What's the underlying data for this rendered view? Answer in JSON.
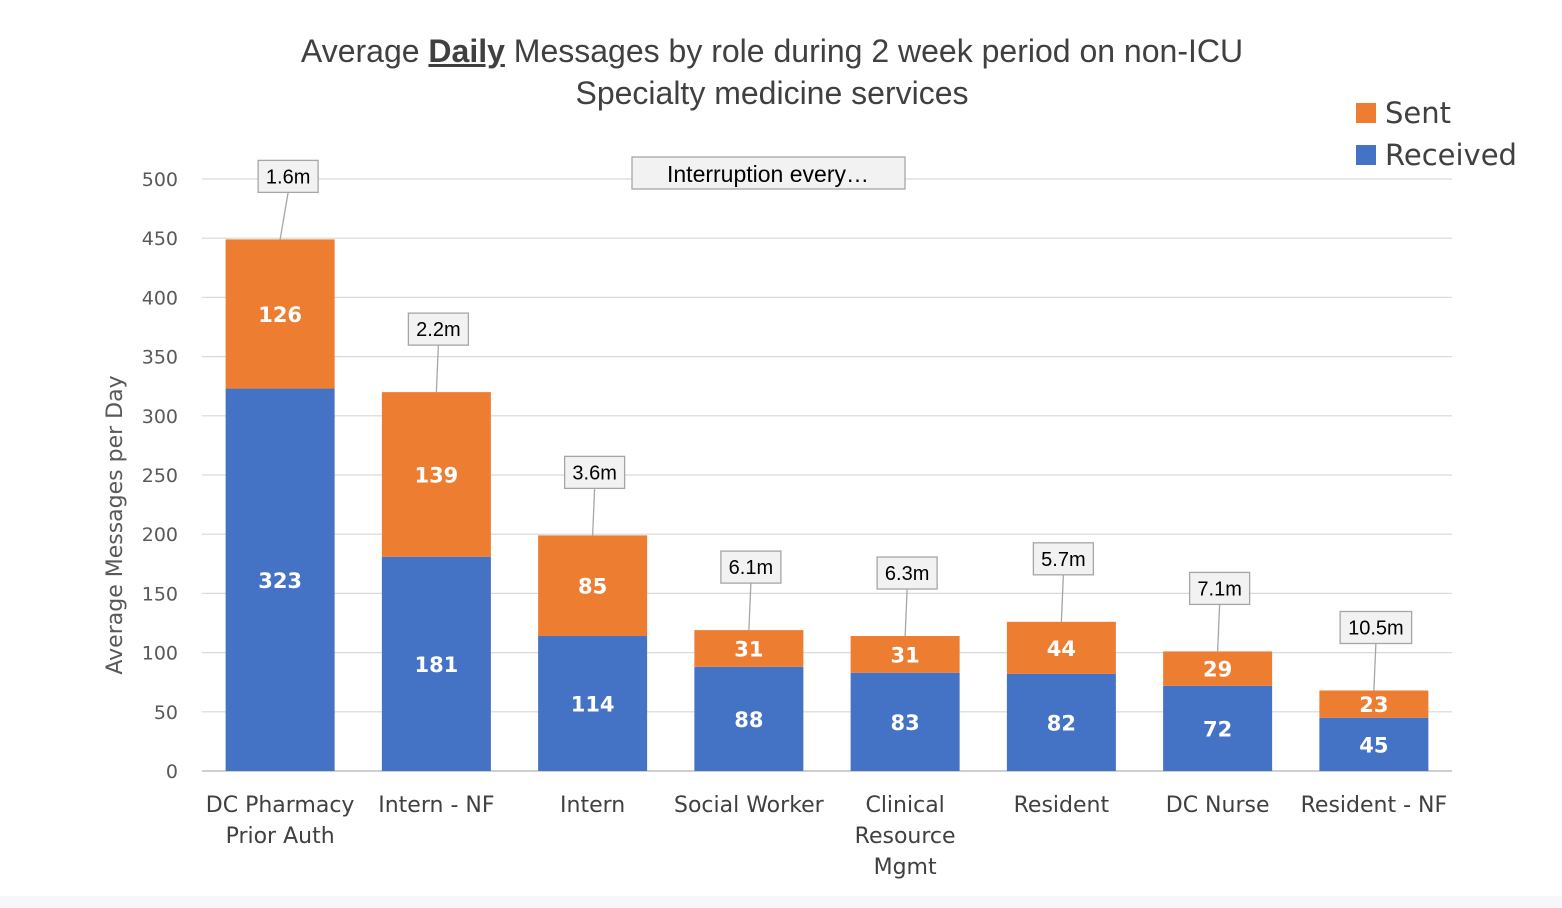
{
  "title": {
    "prefix": "Average ",
    "emph": "Daily",
    "suffix": " Messages by role during 2 week period on non-ICU",
    "line2": "Specialty medicine services"
  },
  "annotation": "Interruption every…",
  "chart_data": {
    "type": "bar",
    "stacked": true,
    "categories": [
      "DC Pharmacy Prior Auth",
      "Intern - NF",
      "Intern",
      "Social Worker",
      "Clinical Resource Mgmt",
      "Resident",
      "DC Nurse",
      "Resident - NF"
    ],
    "category_lines": [
      [
        "DC Pharmacy",
        "Prior Auth"
      ],
      [
        "Intern - NF"
      ],
      [
        "Intern"
      ],
      [
        "Social Worker"
      ],
      [
        "Clinical",
        "Resource",
        "Mgmt"
      ],
      [
        "Resident"
      ],
      [
        "DC Nurse"
      ],
      [
        "Resident - NF"
      ]
    ],
    "series": [
      {
        "name": "Received",
        "color": "#4472C4",
        "values": [
          323,
          181,
          114,
          88,
          83,
          82,
          72,
          45
        ]
      },
      {
        "name": "Sent",
        "color": "#ED7D31",
        "values": [
          126,
          139,
          85,
          31,
          31,
          44,
          29,
          23
        ]
      }
    ],
    "interruption_labels": [
      "1.6m",
      "2.2m",
      "3.6m",
      "6.1m",
      "6.3m",
      "5.7m",
      "7.1m",
      "10.5m"
    ],
    "ylabel": "Average Messages per Day",
    "xlabel": "",
    "ylim": [
      0,
      500
    ],
    "yticks": [
      0,
      50,
      100,
      150,
      200,
      250,
      300,
      350,
      400,
      450,
      500
    ],
    "grid": true,
    "legend_position": "top-right",
    "legend_order": [
      "Sent",
      "Received"
    ]
  }
}
